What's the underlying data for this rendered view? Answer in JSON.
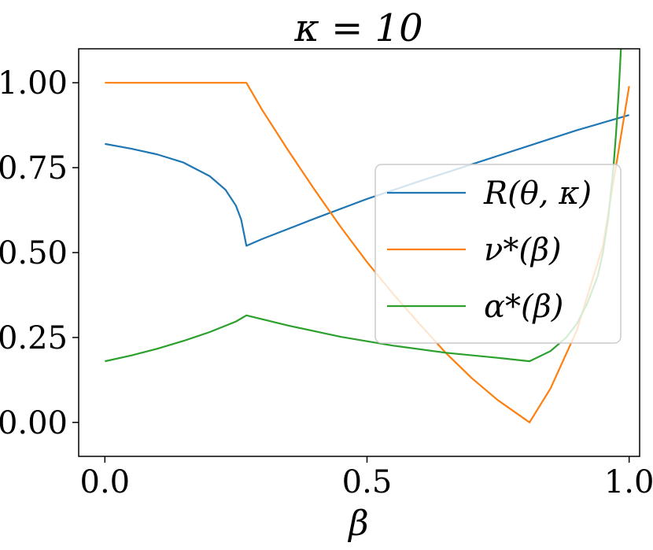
{
  "chart_data": {
    "type": "line",
    "title": "κ = 10",
    "xlabel": "β",
    "ylabel": "",
    "xlim": [
      -0.05,
      1.02
    ],
    "ylim": [
      -0.1,
      1.1
    ],
    "xticks": [
      0.0,
      0.5,
      1.0
    ],
    "xtick_labels": [
      "0.0",
      "0.5",
      "1.0"
    ],
    "yticks": [
      0.0,
      0.25,
      0.5,
      0.75,
      1.0
    ],
    "ytick_labels": [
      "0.00",
      "0.25",
      "0.50",
      "0.75",
      "1.00"
    ],
    "grid": false,
    "legend_position": "center-right",
    "series": [
      {
        "name": "R(θ, κ)",
        "color": "#1f77b4",
        "x": [
          0.0,
          0.05,
          0.1,
          0.15,
          0.2,
          0.23,
          0.25,
          0.26,
          0.27,
          0.3,
          0.4,
          0.5,
          0.6,
          0.7,
          0.8,
          0.9,
          1.0
        ],
        "y": [
          0.82,
          0.806,
          0.789,
          0.765,
          0.725,
          0.685,
          0.638,
          0.597,
          0.52,
          0.54,
          0.6,
          0.658,
          0.71,
          0.76,
          0.81,
          0.86,
          0.905
        ]
      },
      {
        "name": "ν*(β)",
        "color": "#ff7f0e",
        "x": [
          0.0,
          0.27,
          0.3,
          0.35,
          0.4,
          0.45,
          0.5,
          0.55,
          0.6,
          0.65,
          0.7,
          0.75,
          0.81,
          0.85,
          0.9,
          0.95,
          1.0
        ],
        "y": [
          1.0,
          1.0,
          0.92,
          0.8,
          0.685,
          0.575,
          0.472,
          0.378,
          0.29,
          0.205,
          0.13,
          0.065,
          0.0,
          0.1,
          0.27,
          0.52,
          0.99
        ]
      },
      {
        "name": "α*(β)",
        "color": "#2ca02c",
        "x": [
          0.0,
          0.05,
          0.1,
          0.15,
          0.2,
          0.25,
          0.27,
          0.35,
          0.45,
          0.55,
          0.65,
          0.75,
          0.81,
          0.85,
          0.88,
          0.9,
          0.92,
          0.94,
          0.95,
          0.96,
          0.97,
          0.975,
          0.98,
          0.985
        ],
        "y": [
          0.18,
          0.197,
          0.217,
          0.24,
          0.266,
          0.297,
          0.315,
          0.285,
          0.252,
          0.226,
          0.205,
          0.19,
          0.18,
          0.21,
          0.25,
          0.29,
          0.35,
          0.43,
          0.5,
          0.6,
          0.75,
          0.85,
          0.97,
          1.12
        ]
      }
    ]
  }
}
